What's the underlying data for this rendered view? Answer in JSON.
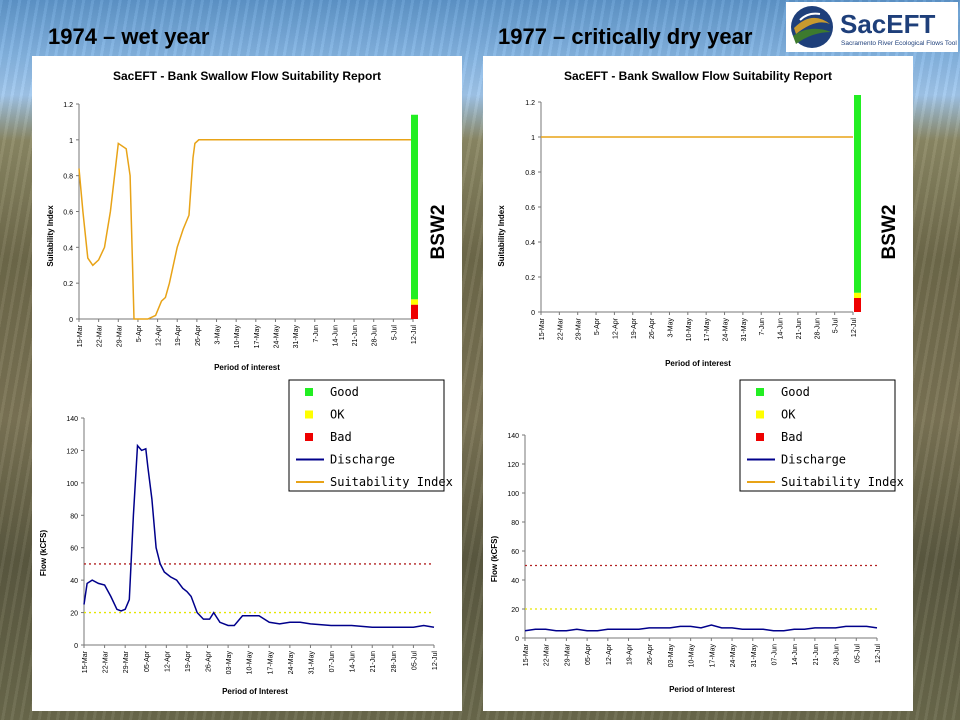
{
  "slide": {
    "left_title": "1974 – wet year",
    "right_title": "1977 – critically dry year",
    "logo_text": "SacEFT",
    "logo_subtitle": "Sacramento River Ecological Flows Tool"
  },
  "colors": {
    "good": "#22ee22",
    "ok": "#ffff00",
    "bad": "#ee0000",
    "discharge": "#00008b",
    "suitability": "#e8a317",
    "threshold_high": "#b22222",
    "threshold_low": "#e6e600"
  },
  "legend": [
    "Good",
    "OK",
    "Bad",
    "Discharge",
    "Suitability Index"
  ],
  "chart_data": [
    {
      "type": "line",
      "title": "SacEFT - Bank Swallow Flow Suitability Report",
      "xlabel": "Period of interest",
      "ylabel": "Suitability Index",
      "ylim": [
        0,
        1.2
      ],
      "yticks": [
        "0",
        "0.2",
        "0.4",
        "0.6",
        "0.8",
        "1",
        "1.2"
      ],
      "categories": [
        "15-Mar",
        "22-Mar",
        "29-Mar",
        "5-Apr",
        "12-Apr",
        "19-Apr",
        "26-Apr",
        "3-May",
        "10-May",
        "17-May",
        "24-May",
        "31-May",
        "7-Jun",
        "14-Jun",
        "21-Jun",
        "28-Jun",
        "5-Jul",
        "12-Jul"
      ],
      "series": [
        {
          "name": "Suitability Index",
          "x": [
            0,
            0.2,
            0.45,
            0.7,
            1,
            1.3,
            1.6,
            2,
            2.4,
            2.6,
            2.8,
            3,
            3.1,
            3.5,
            3.9,
            4.2,
            4.4,
            4.6,
            5,
            5.3,
            5.6,
            5.8,
            5.9,
            6.1,
            6.2,
            6.5,
            7,
            8,
            17
          ],
          "y": [
            0.84,
            0.6,
            0.34,
            0.3,
            0.33,
            0.4,
            0.6,
            0.98,
            0.95,
            0.8,
            0,
            0,
            0,
            0,
            0.02,
            0.1,
            0.12,
            0.2,
            0.4,
            0.5,
            0.58,
            0.9,
            0.98,
            1,
            1,
            1,
            1,
            1,
            1
          ]
        }
      ],
      "bar_label": "BSW2",
      "stacked_bar": {
        "bad": 0.08,
        "ok": 0.03,
        "good": 1.03
      }
    },
    {
      "type": "line",
      "xlabel": "Period of Interest",
      "ylabel": "Flow (kCFS)",
      "ylim": [
        0,
        140
      ],
      "yticks": [
        "0",
        "20",
        "40",
        "60",
        "80",
        "100",
        "120",
        "140"
      ],
      "categories": [
        "15-Mar",
        "22-Mar",
        "29-Mar",
        "05-Apr",
        "12-Apr",
        "19-Apr",
        "26-Apr",
        "03-May",
        "10-May",
        "17-May",
        "24-May",
        "31-May",
        "07-Jun",
        "14-Jun",
        "21-Jun",
        "28-Jun",
        "05-Jul",
        "12-Jul"
      ],
      "thresholds": [
        50,
        20
      ],
      "series": [
        {
          "name": "Discharge",
          "x": [
            0,
            0.15,
            0.4,
            0.7,
            1,
            1.3,
            1.6,
            1.8,
            2,
            2.2,
            2.4,
            2.6,
            2.8,
            3,
            3.1,
            3.3,
            3.5,
            3.7,
            3.9,
            4.2,
            4.5,
            4.8,
            5,
            5.2,
            5.5,
            5.8,
            6.1,
            6.3,
            6.6,
            7,
            7.3,
            7.7,
            8,
            8.5,
            9,
            9.5,
            10,
            10.5,
            11,
            12,
            13,
            14,
            15,
            16,
            16.5,
            17
          ],
          "y": [
            25,
            38,
            40,
            38,
            37,
            30,
            22,
            21,
            22,
            28,
            80,
            123,
            120,
            121,
            110,
            90,
            60,
            50,
            45,
            42,
            40,
            35,
            33,
            30,
            20,
            16,
            16,
            20,
            14,
            12,
            12,
            18,
            18,
            18,
            14,
            13,
            14,
            14,
            13,
            12,
            12,
            11,
            11,
            11,
            12,
            11
          ]
        }
      ]
    },
    {
      "type": "line",
      "title": "SacEFT - Bank Swallow Flow Suitability Report",
      "xlabel": "Period of interest",
      "ylabel": "Suitability Index",
      "ylim": [
        0,
        1.2
      ],
      "yticks": [
        "0",
        "0.2",
        "0.4",
        "0.6",
        "0.8",
        "1",
        "1.2"
      ],
      "categories": [
        "15-Mar",
        "22-Mar",
        "29-Mar",
        "5-Apr",
        "12-Apr",
        "19-Apr",
        "26-Apr",
        "3-May",
        "10-May",
        "17-May",
        "24-May",
        "31-May",
        "7-Jun",
        "14-Jun",
        "21-Jun",
        "28-Jun",
        "5-Jul",
        "12-Jul"
      ],
      "series": [
        {
          "name": "Suitability Index",
          "x": [
            0,
            17
          ],
          "y": [
            1,
            1
          ]
        }
      ],
      "bar_label": "BSW2",
      "stacked_bar": {
        "bad": 0.08,
        "ok": 0.03,
        "good": 1.13
      }
    },
    {
      "type": "line",
      "xlabel": "Period of Interest",
      "ylabel": "Flow (kCFS)",
      "ylim": [
        0,
        140
      ],
      "yticks": [
        "0",
        "20",
        "40",
        "60",
        "80",
        "100",
        "120",
        "140"
      ],
      "categories": [
        "15-Mar",
        "22-Mar",
        "29-Mar",
        "05-Apr",
        "12-Apr",
        "19-Apr",
        "26-Apr",
        "03-May",
        "10-May",
        "17-May",
        "24-May",
        "31-May",
        "07-Jun",
        "14-Jun",
        "21-Jun",
        "28-Jun",
        "05-Jul",
        "12-Jul"
      ],
      "thresholds": [
        50,
        20
      ],
      "series": [
        {
          "name": "Discharge",
          "x": [
            0,
            0.5,
            1,
            1.5,
            2,
            2.5,
            3,
            3.5,
            4,
            4.5,
            5,
            5.5,
            6,
            6.5,
            7,
            7.5,
            8,
            8.5,
            9,
            9.5,
            10,
            10.5,
            11,
            11.5,
            12,
            12.5,
            13,
            13.5,
            14,
            14.5,
            15,
            15.5,
            16,
            16.5,
            17
          ],
          "y": [
            5,
            6,
            6,
            5,
            5,
            6,
            5,
            5,
            6,
            6,
            6,
            6,
            7,
            7,
            7,
            8,
            8,
            7,
            9,
            7,
            7,
            6,
            6,
            6,
            5,
            5,
            6,
            6,
            7,
            7,
            7,
            8,
            8,
            8,
            7
          ]
        }
      ]
    }
  ]
}
